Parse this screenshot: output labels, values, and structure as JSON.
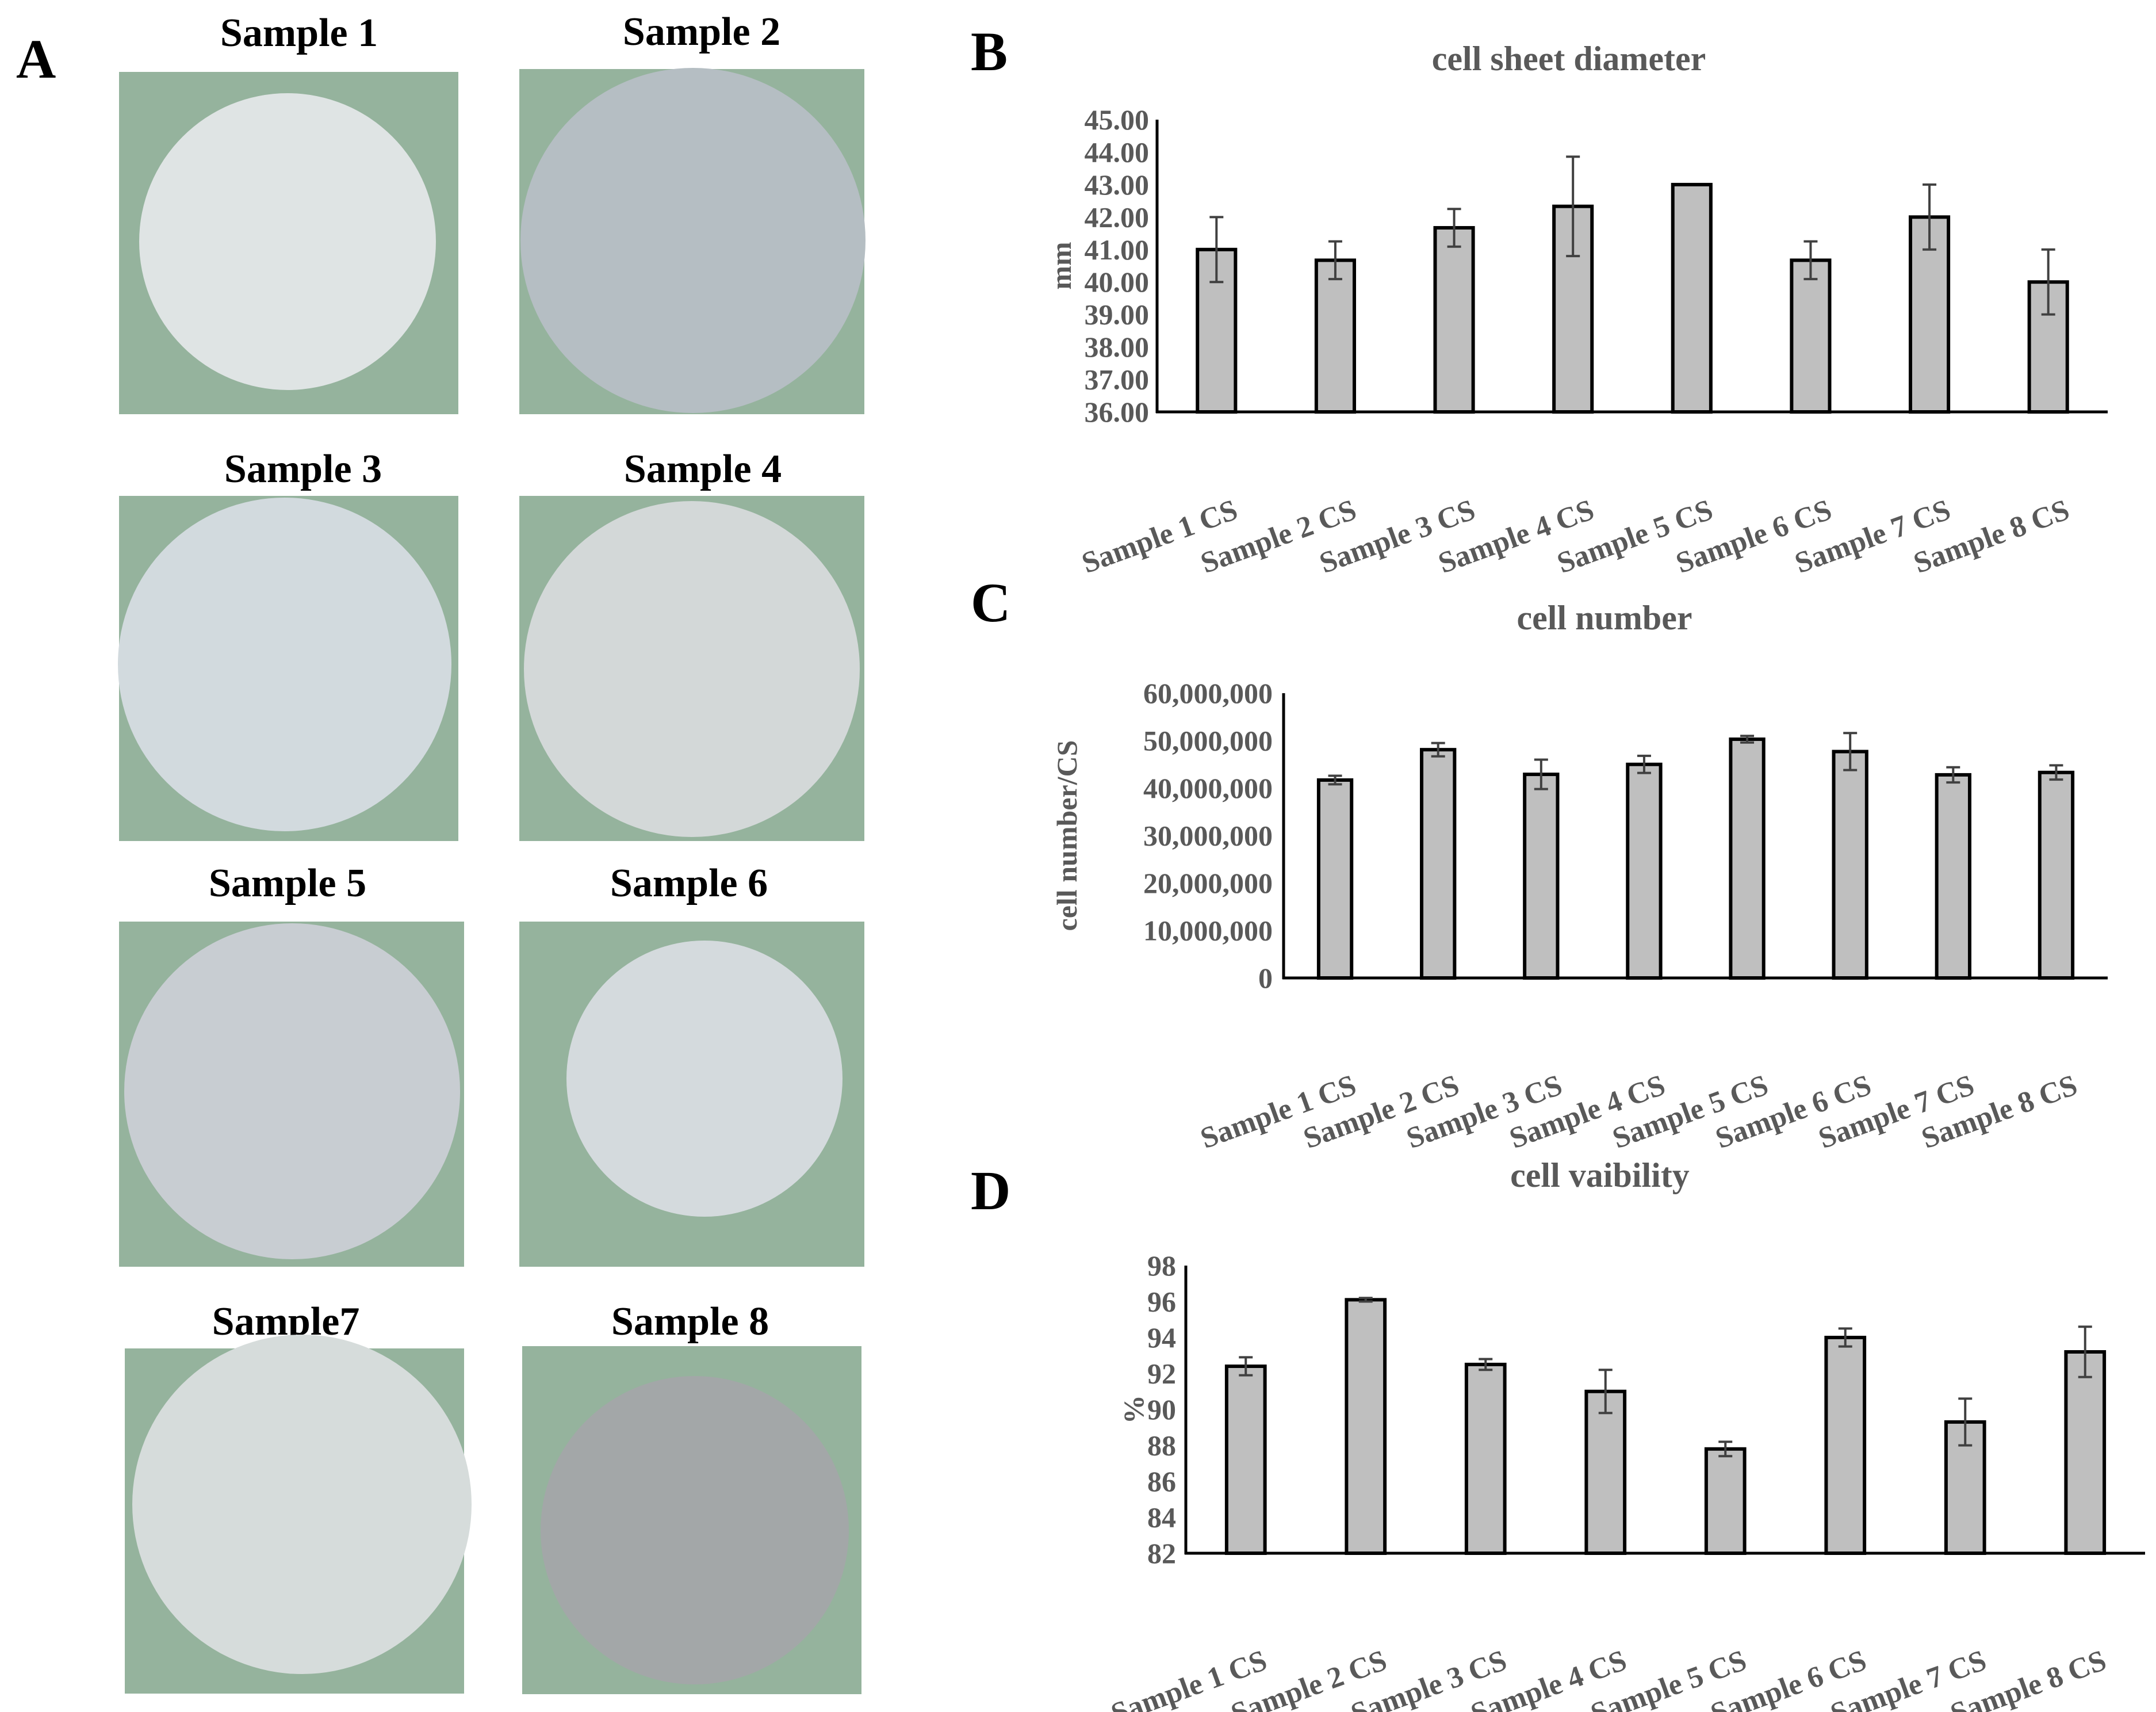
{
  "panels": {
    "a": "A",
    "b": "B",
    "c": "C",
    "d": "D"
  },
  "photos": [
    {
      "title": "Sample 1",
      "disc_color": "#dfe4e4"
    },
    {
      "title": "Sample 2",
      "disc_color": "#b5bec3"
    },
    {
      "title": "Sample 3",
      "disc_color": "#d2dade"
    },
    {
      "title": "Sample 4",
      "disc_color": "#d3d8d8"
    },
    {
      "title": "Sample 5",
      "disc_color": "#c8cdd2"
    },
    {
      "title": "Sample 6",
      "disc_color": "#d4dadd"
    },
    {
      "title": "Sample7",
      "disc_color": "#d6dcdb"
    },
    {
      "title": "Sample 8",
      "disc_color": "#a3a7a8"
    }
  ],
  "colors": {
    "bar_fill": "#bfbfbf",
    "photo_background": "#95b39d",
    "label_gray": "#595959"
  },
  "chart_data": [
    {
      "type": "bar",
      "panel": "B",
      "title": "cell sheet diameter",
      "ylabel": "mm",
      "xlabel": "",
      "categories": [
        "Sample 1 CS",
        "Sample 2 CS",
        "Sample 3 CS",
        "Sample 4 CS",
        "Sample 5 CS",
        "Sample 6 CS",
        "Sample 7 CS",
        "Sample 8 CS"
      ],
      "values": [
        41.0,
        40.67,
        41.67,
        42.33,
        43.0,
        40.67,
        42.0,
        40.0
      ],
      "errors": [
        1.0,
        0.58,
        0.58,
        1.53,
        0.0,
        0.58,
        1.0,
        1.0
      ],
      "ylim": [
        36,
        45
      ],
      "yticks": [
        36,
        37,
        38,
        39,
        40,
        41,
        42,
        43,
        44,
        45
      ],
      "ytick_labels": [
        "36.00",
        "37.00",
        "38.00",
        "39.00",
        "40.00",
        "41.00",
        "42.00",
        "43.00",
        "44.00",
        "45.00"
      ],
      "grid": false
    },
    {
      "type": "bar",
      "panel": "C",
      "title": "cell number",
      "ylabel": "cell number/CS",
      "xlabel": "",
      "categories": [
        "Sample 1 CS",
        "Sample 2 CS",
        "Sample 3 CS",
        "Sample 4 CS",
        "Sample 5 CS",
        "Sample 6 CS",
        "Sample 7 CS",
        "Sample 8 CS"
      ],
      "values": [
        41700000,
        48100000,
        42900000,
        45000000,
        50300000,
        47700000,
        42800000,
        43300000
      ],
      "errors": [
        900000,
        1400000,
        3100000,
        1800000,
        700000,
        3900000,
        1600000,
        1500000
      ],
      "ylim": [
        0,
        60000000
      ],
      "yticks": [
        0,
        10000000,
        20000000,
        30000000,
        40000000,
        50000000,
        60000000
      ],
      "ytick_labels": [
        "0",
        "10,000,000",
        "20,000,000",
        "30,000,000",
        "40,000,000",
        "50,000,000",
        "60,000,000"
      ],
      "grid": false
    },
    {
      "type": "bar",
      "panel": "D",
      "title": "cell vaibility",
      "ylabel": "%",
      "xlabel": "",
      "categories": [
        "Sample 1 CS",
        "Sample 2 CS",
        "Sample 3 CS",
        "Sample 4 CS",
        "Sample 5 CS",
        "Sample 6 CS",
        "Sample 7 CS",
        "Sample 8 CS"
      ],
      "values": [
        92.4,
        96.1,
        92.5,
        91.0,
        87.8,
        94.0,
        89.3,
        93.2
      ],
      "errors": [
        0.5,
        0.1,
        0.3,
        1.2,
        0.4,
        0.5,
        1.3,
        1.4
      ],
      "ylim": [
        82,
        98
      ],
      "yticks": [
        82,
        84,
        86,
        88,
        90,
        92,
        94,
        96,
        98
      ],
      "ytick_labels": [
        "82",
        "84",
        "86",
        "88",
        "90",
        "92",
        "94",
        "96",
        "98"
      ],
      "grid": false
    }
  ]
}
